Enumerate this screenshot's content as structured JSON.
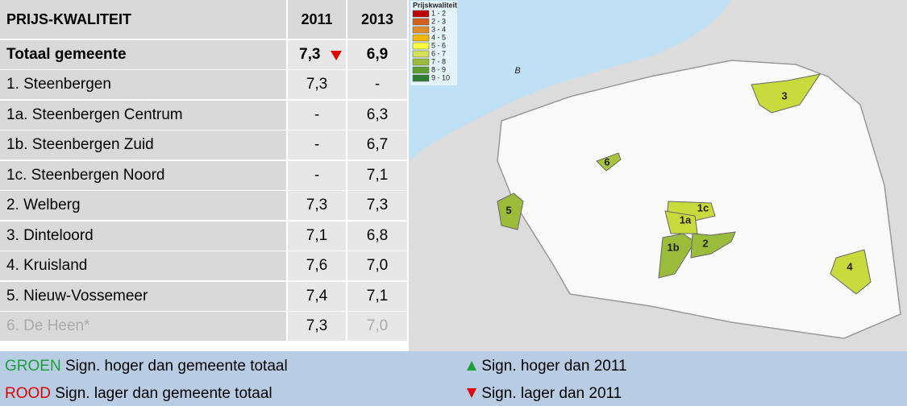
{
  "table": {
    "header": [
      "PRIJS-KWALITEIT",
      "2011",
      "2013"
    ],
    "rows": [
      [
        "Totaal gemeente",
        "7,3",
        "6,9"
      ],
      [
        "1. Steenbergen",
        "7,3",
        "-"
      ],
      [
        "1a. Steenbergen Centrum",
        "-",
        "6,3"
      ],
      [
        "1b. Steenbergen Zuid",
        "-",
        "6,7"
      ],
      [
        "1c. Steenbergen Noord",
        "-",
        "7,1"
      ],
      [
        "2. Welberg",
        "7,3",
        "7,3"
      ],
      [
        "3. Dinteloord",
        "7,1",
        "6,8"
      ],
      [
        "4. Kruisland",
        "7,6",
        "7,0"
      ],
      [
        "5. Nieuw-Vossemeer",
        "7,4",
        "7,1"
      ],
      [
        "6. De Heen*",
        "7,3",
        "7,0"
      ]
    ]
  },
  "map": {
    "legend_title": "Prijskwaliteit",
    "legend": [
      "1 - 2",
      "2 - 3",
      "3 - 4",
      "4 - 5",
      "5 - 6",
      "6 - 7",
      "7 - 8",
      "8 - 9",
      "9 - 10"
    ],
    "labels": [
      "3",
      "6",
      "5",
      "1c",
      "1a",
      "1b",
      "2",
      "4",
      "B"
    ]
  },
  "footer": {
    "green_word": "GROEN",
    "green_text": "Sign. hoger dan gemeente totaal",
    "up_text": "Sign. hoger dan 2011",
    "red_word": "ROOD",
    "red_text": "Sign. lager dan gemeente totaal",
    "down_text": "Sign. lager dan 2011"
  }
}
